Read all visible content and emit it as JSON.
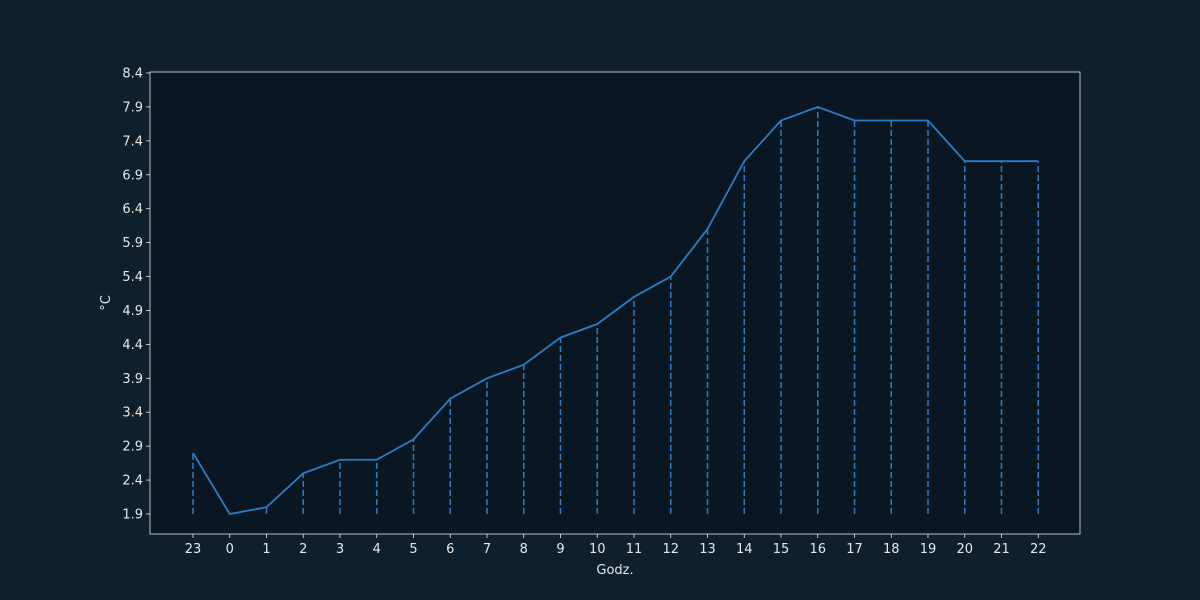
{
  "chart_data": {
    "type": "line",
    "xlabel": "Godz.",
    "ylabel": "°C",
    "categories": [
      "23",
      "0",
      "1",
      "2",
      "3",
      "4",
      "5",
      "6",
      "7",
      "8",
      "9",
      "10",
      "11",
      "12",
      "13",
      "14",
      "15",
      "16",
      "17",
      "18",
      "19",
      "20",
      "21",
      "22"
    ],
    "series": [
      {
        "values": [
          2.8,
          1.9,
          2.0,
          2.5,
          2.7,
          2.7,
          3.0,
          3.6,
          3.9,
          4.1,
          4.5,
          4.7,
          5.1,
          5.4,
          6.1,
          7.1,
          7.7,
          7.9,
          7.7,
          7.7,
          7.7,
          7.1,
          7.1,
          7.1
        ]
      }
    ],
    "yticks": [
      "1.9",
      "2.4",
      "2.9",
      "3.4",
      "3.9",
      "4.4",
      "4.9",
      "5.4",
      "5.9",
      "6.4",
      "6.9",
      "7.4",
      "7.9",
      "8.4"
    ],
    "ylim": [
      1.9,
      8.4
    ],
    "drop_lines_to": 1.9,
    "grid": false,
    "colors": {
      "figure_background": "#0f1f2b",
      "plot_background": "#0a1621",
      "line": "#2a7ec8",
      "axis": "#e8e8e8",
      "text": "#e8e8e8"
    }
  }
}
